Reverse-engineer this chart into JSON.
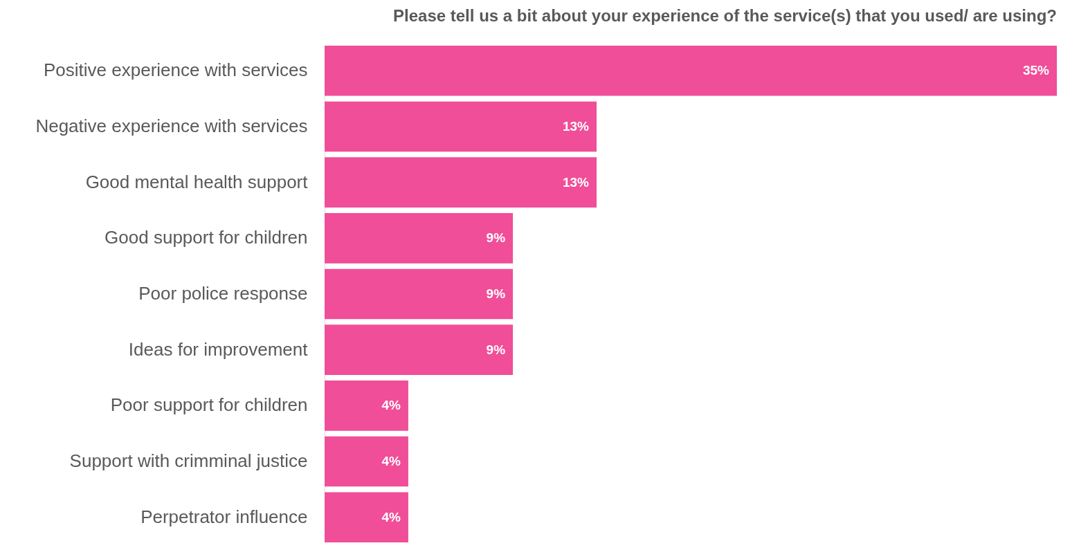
{
  "chart_data": {
    "type": "bar",
    "orientation": "horizontal",
    "title": "Please tell us a bit about your experience of the service(s) that you used/ are using?",
    "categories": [
      "Positive experience with services",
      "Negative experience with services",
      "Good mental health support",
      "Good support for children",
      "Poor police response",
      "Ideas for improvement",
      "Poor support for children",
      "Support with crimminal justice",
      "Perpetrator influence"
    ],
    "values": [
      35,
      13,
      13,
      9,
      9,
      9,
      4,
      4,
      4
    ],
    "value_labels": [
      "35%",
      "13%",
      "13%",
      "9%",
      "9%",
      "9%",
      "4%",
      "4%",
      "4%"
    ],
    "color": "#f04e98",
    "grid": false,
    "tick_labels": "y"
  }
}
